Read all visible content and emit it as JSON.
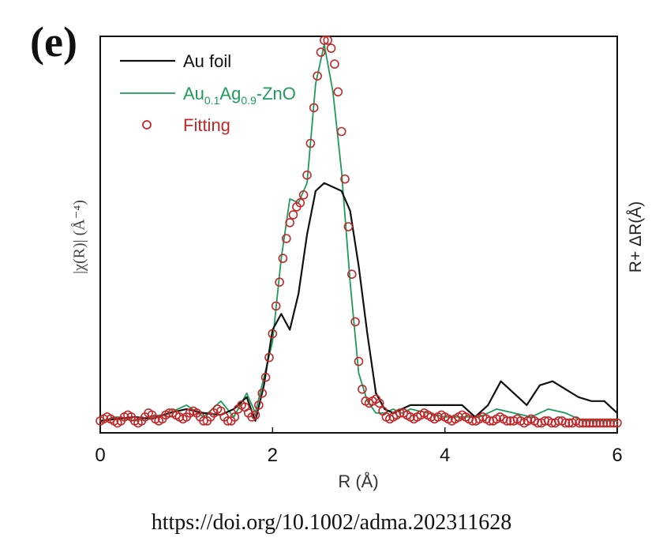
{
  "panel_label": "(e)",
  "doi": "https://doi.org/10.1002/adma.202311628",
  "chart_data": {
    "type": "line",
    "xlabel": "R (Å)",
    "ylabel": "|χ(R)| (Å⁻⁴)",
    "y2label": "R+ ΔR(Å)",
    "xlim": [
      0,
      6
    ],
    "ylim": [
      0,
      1.0
    ],
    "xticks": [
      "0",
      "2",
      "4",
      "6"
    ],
    "legend_position": "top-left",
    "series": [
      {
        "name": "Au foil",
        "color": "#111111",
        "style": "line",
        "x": [
          0.0,
          0.2,
          0.4,
          0.6,
          0.8,
          1.0,
          1.2,
          1.4,
          1.55,
          1.7,
          1.8,
          1.9,
          2.0,
          2.1,
          2.2,
          2.3,
          2.4,
          2.5,
          2.6,
          2.7,
          2.8,
          2.9,
          3.0,
          3.1,
          3.2,
          3.3,
          3.4,
          3.5,
          3.6,
          3.8,
          4.0,
          4.2,
          4.35,
          4.5,
          4.65,
          4.8,
          4.95,
          5.1,
          5.25,
          5.4,
          5.55,
          5.7,
          5.85,
          6.0
        ],
        "y": [
          0.03,
          0.035,
          0.04,
          0.035,
          0.05,
          0.06,
          0.05,
          0.045,
          0.06,
          0.09,
          0.03,
          0.12,
          0.26,
          0.3,
          0.26,
          0.35,
          0.5,
          0.61,
          0.63,
          0.62,
          0.61,
          0.56,
          0.42,
          0.25,
          0.1,
          0.06,
          0.05,
          0.06,
          0.07,
          0.07,
          0.07,
          0.07,
          0.04,
          0.07,
          0.13,
          0.1,
          0.07,
          0.12,
          0.13,
          0.11,
          0.09,
          0.08,
          0.08,
          0.05
        ]
      },
      {
        "name": "Au0.1Ag0.9-ZnO",
        "name_parts": {
          "a": "Au",
          "a_sub": "0.1",
          "b": "Ag",
          "b_sub": "0.9",
          "c": "-ZnO"
        },
        "color": "#1e9a5a",
        "style": "line",
        "x": [
          0.0,
          0.2,
          0.4,
          0.6,
          0.8,
          1.0,
          1.2,
          1.4,
          1.55,
          1.7,
          1.8,
          1.9,
          2.0,
          2.1,
          2.2,
          2.3,
          2.4,
          2.5,
          2.6,
          2.7,
          2.8,
          2.9,
          3.0,
          3.1,
          3.2,
          3.3,
          3.4,
          3.5,
          3.6,
          3.8,
          4.0,
          4.2,
          4.4,
          4.6,
          4.8,
          5.0,
          5.2,
          5.4,
          5.6,
          5.8,
          6.0
        ],
        "y": [
          0.03,
          0.04,
          0.03,
          0.04,
          0.05,
          0.07,
          0.04,
          0.08,
          0.04,
          0.1,
          0.05,
          0.14,
          0.23,
          0.44,
          0.59,
          0.58,
          0.63,
          0.88,
          0.98,
          0.86,
          0.66,
          0.38,
          0.15,
          0.08,
          0.05,
          0.05,
          0.06,
          0.05,
          0.06,
          0.05,
          0.04,
          0.04,
          0.04,
          0.06,
          0.05,
          0.04,
          0.06,
          0.05,
          0.03,
          0.03,
          0.03
        ]
      },
      {
        "name": "Fitting",
        "color": "#c0282a",
        "style": "markers",
        "x": [
          0.0,
          0.04,
          0.08,
          0.12,
          0.16,
          0.2,
          0.24,
          0.28,
          0.32,
          0.36,
          0.4,
          0.44,
          0.48,
          0.52,
          0.56,
          0.6,
          0.64,
          0.68,
          0.72,
          0.76,
          0.8,
          0.84,
          0.88,
          0.92,
          0.96,
          1.0,
          1.04,
          1.08,
          1.12,
          1.16,
          1.2,
          1.24,
          1.28,
          1.32,
          1.36,
          1.4,
          1.44,
          1.48,
          1.52,
          1.56,
          1.6,
          1.64,
          1.68,
          1.72,
          1.76,
          1.8,
          1.84,
          1.88,
          1.92,
          1.96,
          2.0,
          2.04,
          2.08,
          2.12,
          2.16,
          2.2,
          2.24,
          2.28,
          2.32,
          2.36,
          2.4,
          2.44,
          2.48,
          2.52,
          2.56,
          2.6,
          2.64,
          2.68,
          2.72,
          2.76,
          2.8,
          2.84,
          2.88,
          2.92,
          2.96,
          3.0,
          3.04,
          3.08,
          3.12,
          3.16,
          3.2,
          3.24,
          3.28,
          3.32,
          3.36,
          3.4,
          3.44,
          3.48,
          3.52,
          3.56,
          3.6,
          3.64,
          3.68,
          3.72,
          3.76,
          3.8,
          3.84,
          3.88,
          3.92,
          3.96,
          4.0,
          4.04,
          4.08,
          4.12,
          4.16,
          4.2,
          4.24,
          4.28,
          4.32,
          4.36,
          4.4,
          4.44,
          4.48,
          4.52,
          4.56,
          4.6,
          4.64,
          4.68,
          4.72,
          4.76,
          4.8,
          4.84,
          4.88,
          4.92,
          4.96,
          5.0,
          5.04,
          5.08,
          5.12,
          5.16,
          5.2,
          5.24,
          5.28,
          5.32,
          5.36,
          5.4,
          5.44,
          5.48,
          5.52,
          5.56,
          5.6,
          5.64,
          5.68,
          5.72,
          5.76,
          5.8,
          5.84,
          5.88,
          5.92,
          5.96,
          6.0
        ],
        "y": [
          0.03,
          0.035,
          0.04,
          0.035,
          0.03,
          0.025,
          0.03,
          0.04,
          0.045,
          0.04,
          0.03,
          0.025,
          0.03,
          0.04,
          0.05,
          0.045,
          0.035,
          0.03,
          0.035,
          0.045,
          0.05,
          0.05,
          0.045,
          0.04,
          0.035,
          0.04,
          0.05,
          0.055,
          0.05,
          0.04,
          0.03,
          0.03,
          0.04,
          0.05,
          0.06,
          0.055,
          0.04,
          0.03,
          0.03,
          0.04,
          0.06,
          0.07,
          0.065,
          0.05,
          0.04,
          0.045,
          0.07,
          0.1,
          0.14,
          0.19,
          0.25,
          0.32,
          0.38,
          0.44,
          0.49,
          0.53,
          0.55,
          0.57,
          0.58,
          0.6,
          0.65,
          0.73,
          0.82,
          0.9,
          0.96,
          0.99,
          0.99,
          0.97,
          0.93,
          0.86,
          0.76,
          0.64,
          0.52,
          0.4,
          0.28,
          0.18,
          0.11,
          0.08,
          0.075,
          0.08,
          0.085,
          0.075,
          0.055,
          0.04,
          0.035,
          0.04,
          0.045,
          0.05,
          0.05,
          0.045,
          0.04,
          0.035,
          0.04,
          0.045,
          0.05,
          0.045,
          0.04,
          0.035,
          0.04,
          0.045,
          0.04,
          0.035,
          0.03,
          0.035,
          0.04,
          0.045,
          0.04,
          0.035,
          0.03,
          0.03,
          0.035,
          0.04,
          0.035,
          0.03,
          0.03,
          0.035,
          0.04,
          0.035,
          0.03,
          0.03,
          0.03,
          0.035,
          0.03,
          0.025,
          0.03,
          0.035,
          0.03,
          0.025,
          0.025,
          0.03,
          0.03,
          0.025,
          0.025,
          0.03,
          0.03,
          0.025,
          0.025,
          0.025,
          0.03,
          0.025,
          0.025,
          0.025,
          0.025,
          0.025,
          0.025,
          0.025,
          0.025,
          0.025,
          0.025,
          0.025,
          0.025
        ]
      }
    ]
  }
}
